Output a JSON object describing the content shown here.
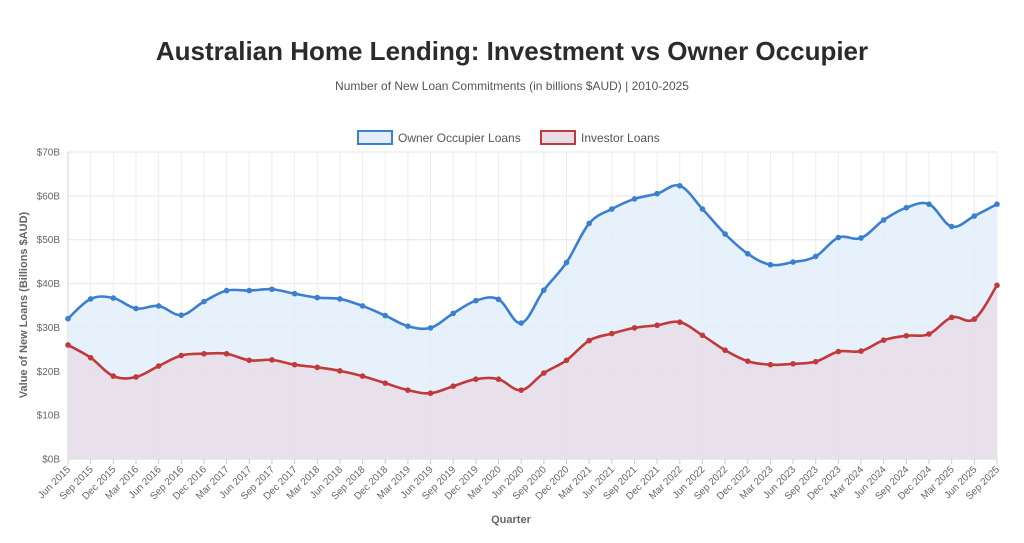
{
  "chart_data": {
    "type": "area",
    "title": "Australian Home Lending: Investment vs Owner Occupier",
    "subtitle": "Number of New Loan Commitments (in billions $AUD) | 2010-2025",
    "xlabel": "Quarter",
    "ylabel": "Value of New Loans (Billions $AUD)",
    "ylim": [
      0,
      70
    ],
    "yticks": [
      {
        "value": 0,
        "label": "$0B"
      },
      {
        "value": 10,
        "label": "$10B"
      },
      {
        "value": 20,
        "label": "$20B"
      },
      {
        "value": 30,
        "label": "$30B"
      },
      {
        "value": 40,
        "label": "$40B"
      },
      {
        "value": 50,
        "label": "$50B"
      },
      {
        "value": 60,
        "label": "$60B"
      },
      {
        "value": 70,
        "label": "$70B"
      }
    ],
    "grid": true,
    "legend_position": "top-center",
    "categories": [
      "Jun 2015",
      "Sep 2015",
      "Dec 2015",
      "Mar 2016",
      "Jun 2016",
      "Sep 2016",
      "Dec 2016",
      "Mar 2017",
      "Jun 2017",
      "Sep 2017",
      "Dec 2017",
      "Mar 2018",
      "Jun 2018",
      "Sep 2018",
      "Dec 2018",
      "Mar 2019",
      "Jun 2019",
      "Sep 2019",
      "Dec 2019",
      "Mar 2020",
      "Jun 2020",
      "Sep 2020",
      "Dec 2020",
      "Mar 2021",
      "Jun 2021",
      "Sep 2021",
      "Dec 2021",
      "Mar 2022",
      "Jun 2022",
      "Sep 2022",
      "Dec 2022",
      "Mar 2023",
      "Jun 2023",
      "Sep 2023",
      "Dec 2023",
      "Mar 2024",
      "Jun 2024",
      "Sep 2024",
      "Dec 2024",
      "Mar 2025",
      "Jun 2025",
      "Sep 2025"
    ],
    "series": [
      {
        "name": "Owner Occupier Loans",
        "color": "#3b7fd0",
        "fill": "#e3eefa",
        "values": [
          32.0,
          36.5,
          36.7,
          34.3,
          34.9,
          32.8,
          35.9,
          38.4,
          38.4,
          38.7,
          37.7,
          36.8,
          36.5,
          34.9,
          32.7,
          30.3,
          29.9,
          33.2,
          36.1,
          36.4,
          31.0,
          38.5,
          44.8,
          53.7,
          57.0,
          59.3,
          60.5,
          62.3,
          57.0,
          51.3,
          46.8,
          44.3,
          44.9,
          46.2,
          50.5,
          50.4,
          54.5,
          57.3,
          58.1,
          53.0,
          55.4,
          58.1
        ]
      },
      {
        "name": "Investor Loans",
        "color": "#c0393b",
        "fill": "#e8dde6",
        "values": [
          26.0,
          23.1,
          18.9,
          18.7,
          21.2,
          23.6,
          24.0,
          24.0,
          22.5,
          22.6,
          21.5,
          20.9,
          20.1,
          18.9,
          17.3,
          15.7,
          15.0,
          16.6,
          18.2,
          18.2,
          15.7,
          19.6,
          22.5,
          27.0,
          28.6,
          29.9,
          30.5,
          31.2,
          28.2,
          24.8,
          22.3,
          21.5,
          21.7,
          22.2,
          24.5,
          24.6,
          27.1,
          28.1,
          28.5,
          32.3,
          31.9,
          39.6
        ]
      }
    ]
  }
}
